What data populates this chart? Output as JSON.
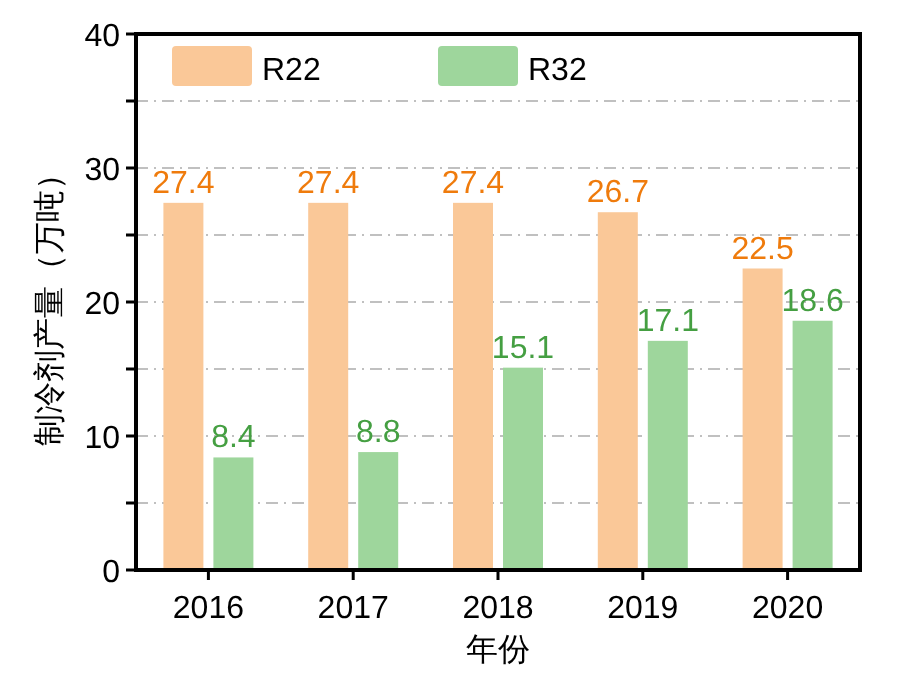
{
  "chart_data": {
    "type": "bar",
    "xlabel": "年份",
    "ylabel": "制冷剂产量（万吨）",
    "categories": [
      "2016",
      "2017",
      "2018",
      "2019",
      "2020"
    ],
    "series": [
      {
        "name": "R22",
        "color": "#fac898",
        "values": [
          27.4,
          27.4,
          27.4,
          26.7,
          22.5
        ]
      },
      {
        "name": "R32",
        "color": "#9ed69c",
        "values": [
          8.4,
          8.8,
          15.1,
          17.1,
          18.6
        ]
      }
    ],
    "ylim": [
      0,
      40
    ],
    "yticks": [
      0,
      {
        "value": 5,
        "label": null
      },
      10,
      {
        "value": 15,
        "label": null
      },
      20,
      {
        "value": 25,
        "label": null
      },
      30,
      {
        "value": 35,
        "label": null
      },
      40
    ],
    "grid": "y",
    "legend": "top",
    "data_labels": true
  }
}
